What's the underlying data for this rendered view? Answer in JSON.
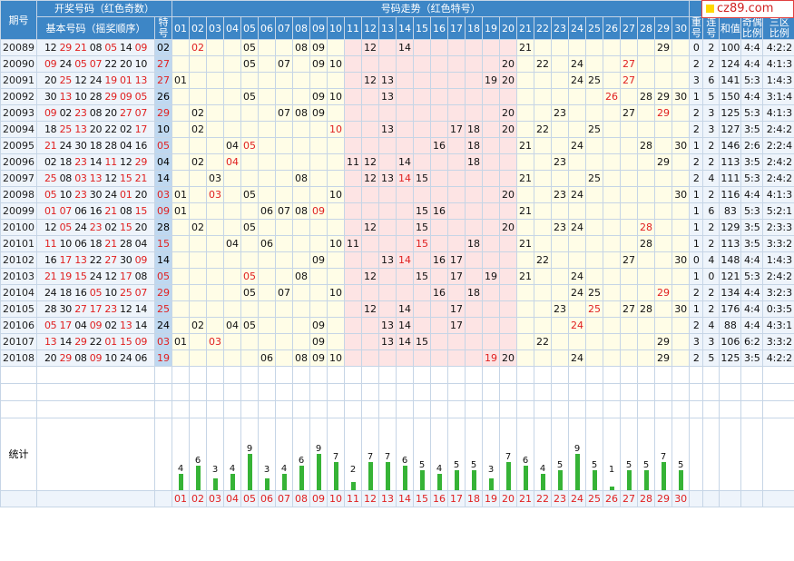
{
  "logo_text": "cz89.com",
  "header": {
    "draw_group": "开奖号码（红色奇数）",
    "trend_group": "号码走势（红色特号）",
    "period": "期号",
    "basic": "基本号码（摇奖顺序）",
    "special": [
      "特",
      "号"
    ],
    "repeat": [
      "重",
      "号"
    ],
    "consec": [
      "连",
      "号"
    ],
    "sum": "和值",
    "oddeven": [
      "奇偶",
      "比例"
    ],
    "zones": [
      "三区",
      "比例"
    ]
  },
  "stats_label": "统计",
  "columns": [
    "01",
    "02",
    "03",
    "04",
    "05",
    "06",
    "07",
    "08",
    "09",
    "10",
    "11",
    "12",
    "13",
    "14",
    "15",
    "16",
    "17",
    "18",
    "19",
    "20",
    "21",
    "22",
    "23",
    "24",
    "25",
    "26",
    "27",
    "28",
    "29",
    "30"
  ],
  "stat_values": [
    4,
    6,
    3,
    4,
    9,
    3,
    4,
    6,
    9,
    7,
    2,
    7,
    7,
    6,
    5,
    4,
    5,
    5,
    3,
    7,
    6,
    4,
    5,
    9,
    5,
    1,
    5,
    5,
    7,
    5
  ],
  "rows": [
    {
      "p": "20089",
      "b": [
        "12",
        "29",
        "21",
        "08",
        "05",
        "14",
        "09"
      ],
      "s": "02",
      "t": [
        "02",
        "05",
        "08",
        "09",
        "12",
        "14",
        "21",
        "29"
      ],
      "rep": "0",
      "con": "2",
      "sum": "100",
      "oe": "4:4",
      "z": "4:2:2"
    },
    {
      "p": "20090",
      "b": [
        "09",
        "24",
        "05",
        "07",
        "22",
        "20",
        "10"
      ],
      "s": "27",
      "t": [
        "05",
        "07",
        "09",
        "10",
        "20",
        "22",
        "24",
        "27"
      ],
      "rep": "2",
      "con": "2",
      "sum": "124",
      "oe": "4:4",
      "z": "4:1:3"
    },
    {
      "p": "20091",
      "b": [
        "20",
        "25",
        "12",
        "24",
        "19",
        "01",
        "13"
      ],
      "s": "27",
      "t": [
        "01",
        "12",
        "13",
        "19",
        "20",
        "24",
        "25",
        "27"
      ],
      "rep": "3",
      "con": "6",
      "sum": "141",
      "oe": "5:3",
      "z": "1:4:3"
    },
    {
      "p": "20092",
      "b": [
        "30",
        "13",
        "10",
        "28",
        "29",
        "09",
        "05"
      ],
      "s": "26",
      "t": [
        "05",
        "09",
        "10",
        "13",
        "26",
        "28",
        "29",
        "30"
      ],
      "rep": "1",
      "con": "5",
      "sum": "150",
      "oe": "4:4",
      "z": "3:1:4"
    },
    {
      "p": "20093",
      "b": [
        "09",
        "02",
        "23",
        "08",
        "20",
        "27",
        "07"
      ],
      "s": "29",
      "t": [
        "02",
        "07",
        "08",
        "09",
        "20",
        "23",
        "27",
        "29"
      ],
      "rep": "2",
      "con": "3",
      "sum": "125",
      "oe": "5:3",
      "z": "4:1:3"
    },
    {
      "p": "20094",
      "b": [
        "18",
        "25",
        "13",
        "20",
        "22",
        "02",
        "17"
      ],
      "s": "10",
      "t": [
        "02",
        "10",
        "13",
        "17",
        "18",
        "20",
        "22",
        "25"
      ],
      "rep": "2",
      "con": "3",
      "sum": "127",
      "oe": "3:5",
      "z": "2:4:2"
    },
    {
      "p": "20095",
      "b": [
        "21",
        "24",
        "30",
        "18",
        "28",
        "04",
        "16"
      ],
      "s": "05",
      "t": [
        "04",
        "05",
        "16",
        "18",
        "21",
        "24",
        "28",
        "30"
      ],
      "rep": "1",
      "con": "2",
      "sum": "146",
      "oe": "2:6",
      "z": "2:2:4"
    },
    {
      "p": "20096",
      "b": [
        "02",
        "18",
        "23",
        "14",
        "11",
        "12",
        "29"
      ],
      "s": "04",
      "t": [
        "02",
        "04",
        "11",
        "12",
        "14",
        "18",
        "23",
        "29"
      ],
      "rep": "2",
      "con": "2",
      "sum": "113",
      "oe": "3:5",
      "z": "2:4:2"
    },
    {
      "p": "20097",
      "b": [
        "25",
        "08",
        "03",
        "13",
        "12",
        "15",
        "21"
      ],
      "s": "14",
      "t": [
        "03",
        "08",
        "12",
        "13",
        "14",
        "15",
        "21",
        "25"
      ],
      "rep": "2",
      "con": "4",
      "sum": "111",
      "oe": "5:3",
      "z": "2:4:2"
    },
    {
      "p": "20098",
      "b": [
        "05",
        "10",
        "23",
        "30",
        "24",
        "01",
        "20"
      ],
      "s": "03",
      "t": [
        "01",
        "03",
        "05",
        "10",
        "20",
        "23",
        "24",
        "30"
      ],
      "rep": "1",
      "con": "2",
      "sum": "116",
      "oe": "4:4",
      "z": "4:1:3"
    },
    {
      "p": "20099",
      "b": [
        "01",
        "07",
        "06",
        "16",
        "21",
        "08",
        "15"
      ],
      "s": "09",
      "t": [
        "01",
        "06",
        "07",
        "08",
        "09",
        "15",
        "16",
        "21"
      ],
      "rep": "1",
      "con": "6",
      "sum": "83",
      "oe": "5:3",
      "z": "5:2:1"
    },
    {
      "p": "20100",
      "b": [
        "12",
        "05",
        "24",
        "23",
        "02",
        "15",
        "20"
      ],
      "s": "28",
      "t": [
        "02",
        "05",
        "12",
        "15",
        "20",
        "23",
        "24",
        "28"
      ],
      "rep": "1",
      "con": "2",
      "sum": "129",
      "oe": "3:5",
      "z": "2:3:3"
    },
    {
      "p": "20101",
      "b": [
        "11",
        "10",
        "06",
        "18",
        "21",
        "28",
        "04"
      ],
      "s": "15",
      "t": [
        "04",
        "06",
        "10",
        "11",
        "15",
        "18",
        "21",
        "28"
      ],
      "rep": "1",
      "con": "2",
      "sum": "113",
      "oe": "3:5",
      "z": "3:3:2"
    },
    {
      "p": "20102",
      "b": [
        "16",
        "17",
        "13",
        "22",
        "27",
        "30",
        "09"
      ],
      "s": "14",
      "t": [
        "09",
        "13",
        "14",
        "16",
        "17",
        "22",
        "27",
        "30"
      ],
      "rep": "0",
      "con": "4",
      "sum": "148",
      "oe": "4:4",
      "z": "1:4:3"
    },
    {
      "p": "20103",
      "b": [
        "21",
        "19",
        "15",
        "24",
        "12",
        "17",
        "08"
      ],
      "s": "05",
      "t": [
        "05",
        "08",
        "12",
        "15",
        "17",
        "19",
        "21",
        "24"
      ],
      "rep": "1",
      "con": "0",
      "sum": "121",
      "oe": "5:3",
      "z": "2:4:2"
    },
    {
      "p": "20104",
      "b": [
        "24",
        "18",
        "16",
        "05",
        "10",
        "25",
        "07"
      ],
      "s": "29",
      "t": [
        "05",
        "07",
        "10",
        "16",
        "18",
        "24",
        "25",
        "29"
      ],
      "rep": "2",
      "con": "2",
      "sum": "134",
      "oe": "4:4",
      "z": "3:2:3"
    },
    {
      "p": "20105",
      "b": [
        "28",
        "30",
        "27",
        "17",
        "23",
        "12",
        "14"
      ],
      "s": "25",
      "t": [
        "12",
        "14",
        "17",
        "23",
        "25",
        "27",
        "28",
        "30"
      ],
      "rep": "1",
      "con": "2",
      "sum": "176",
      "oe": "4:4",
      "z": "0:3:5"
    },
    {
      "p": "20106",
      "b": [
        "05",
        "17",
        "04",
        "09",
        "02",
        "13",
        "14"
      ],
      "s": "24",
      "t": [
        "02",
        "04",
        "05",
        "09",
        "13",
        "14",
        "17",
        "24"
      ],
      "rep": "2",
      "con": "4",
      "sum": "88",
      "oe": "4:4",
      "z": "4:3:1"
    },
    {
      "p": "20107",
      "b": [
        "13",
        "14",
        "29",
        "22",
        "01",
        "15",
        "09"
      ],
      "s": "03",
      "t": [
        "01",
        "03",
        "09",
        "13",
        "14",
        "15",
        "22",
        "29"
      ],
      "rep": "3",
      "con": "3",
      "sum": "106",
      "oe": "6:2",
      "z": "3:3:2"
    },
    {
      "p": "20108",
      "b": [
        "20",
        "29",
        "08",
        "09",
        "10",
        "24",
        "06"
      ],
      "s": "19",
      "t": [
        "06",
        "08",
        "09",
        "10",
        "19",
        "20",
        "24",
        "29"
      ],
      "rep": "2",
      "con": "5",
      "sum": "125",
      "oe": "3:5",
      "z": "4:2:2"
    }
  ],
  "colors": {
    "header": "#3d86c6",
    "trend_bg": "#fffde7",
    "mid_zone": "#fde4e4",
    "special_bg": "#bfd8f0",
    "odd": "#e02020",
    "bar": "#36b336"
  }
}
